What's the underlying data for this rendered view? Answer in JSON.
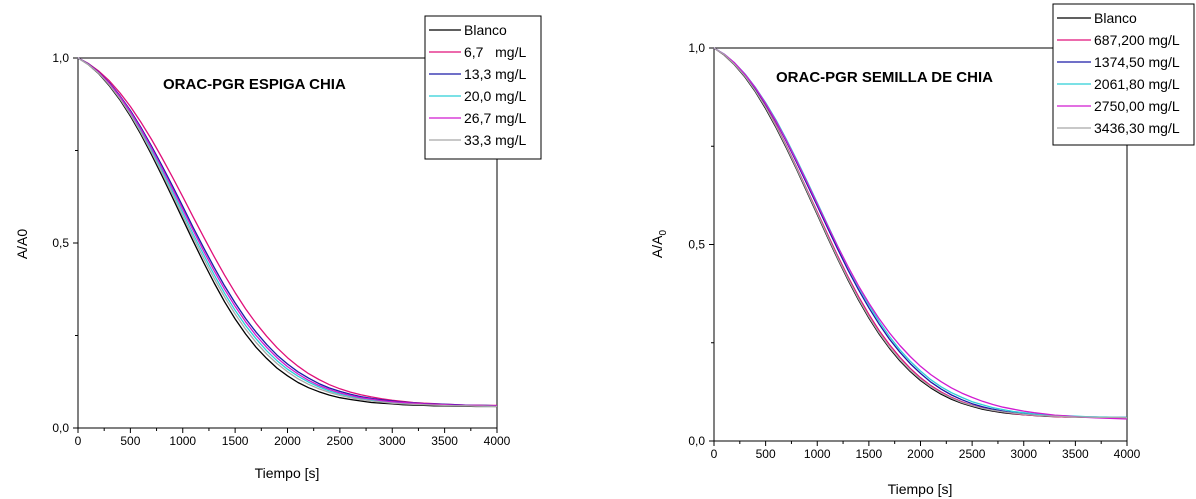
{
  "chart_data": [
    {
      "type": "line",
      "title": "ORAC-PGR ESPIGA CHIA",
      "xlabel": "Tiempo [s]",
      "ylabel": "A/A0",
      "xlim": [
        0,
        4000
      ],
      "ylim": [
        0,
        1
      ],
      "x_ticks": [
        "0",
        "500",
        "1000",
        "1500",
        "2000",
        "2500",
        "3000",
        "3500",
        "4000"
      ],
      "y_ticks": [
        "0,0",
        "0,5",
        "1,0"
      ],
      "grid": false,
      "legend_position": "top-right",
      "x": [
        0,
        100,
        200,
        300,
        400,
        500,
        600,
        700,
        800,
        900,
        1000,
        1100,
        1200,
        1300,
        1400,
        1500,
        1600,
        1700,
        1800,
        1900,
        2000,
        2100,
        2200,
        2300,
        2400,
        2500,
        2600,
        2700,
        2800,
        2900,
        3000,
        3100,
        3200,
        3300,
        3400,
        3500,
        3600,
        3700,
        3800,
        3900,
        4000
      ],
      "series": [
        {
          "name": "Blanco",
          "color": "#000000",
          "values": [
            1.0,
            0.982,
            0.957,
            0.925,
            0.887,
            0.843,
            0.794,
            0.74,
            0.683,
            0.624,
            0.564,
            0.505,
            0.447,
            0.392,
            0.341,
            0.295,
            0.254,
            0.218,
            0.188,
            0.162,
            0.141,
            0.123,
            0.109,
            0.098,
            0.089,
            0.082,
            0.077,
            0.073,
            0.069,
            0.067,
            0.065,
            0.063,
            0.062,
            0.061,
            0.06,
            0.06,
            0.059,
            0.059,
            0.058,
            0.058,
            0.058
          ]
        },
        {
          "name": "6,7   mg/L",
          "color": "#e0107a",
          "values": [
            1.0,
            0.985,
            0.964,
            0.938,
            0.906,
            0.869,
            0.827,
            0.781,
            0.731,
            0.679,
            0.625,
            0.57,
            0.516,
            0.463,
            0.413,
            0.366,
            0.322,
            0.283,
            0.248,
            0.217,
            0.19,
            0.167,
            0.147,
            0.131,
            0.117,
            0.106,
            0.097,
            0.09,
            0.084,
            0.079,
            0.075,
            0.072,
            0.069,
            0.067,
            0.066,
            0.064,
            0.063,
            0.062,
            0.062,
            0.061,
            0.061
          ]
        },
        {
          "name": "13,3 mg/L",
          "color": "#1a1aa6",
          "values": [
            1.0,
            0.984,
            0.961,
            0.933,
            0.898,
            0.858,
            0.813,
            0.763,
            0.71,
            0.655,
            0.599,
            0.542,
            0.487,
            0.434,
            0.384,
            0.338,
            0.296,
            0.259,
            0.226,
            0.197,
            0.173,
            0.152,
            0.135,
            0.12,
            0.108,
            0.099,
            0.091,
            0.085,
            0.08,
            0.076,
            0.073,
            0.07,
            0.068,
            0.066,
            0.065,
            0.064,
            0.063,
            0.062,
            0.061,
            0.061,
            0.06
          ]
        },
        {
          "name": "20,0 mg/L",
          "color": "#2ccfd8",
          "values": [
            1.0,
            0.983,
            0.959,
            0.929,
            0.893,
            0.851,
            0.804,
            0.752,
            0.697,
            0.64,
            0.582,
            0.524,
            0.468,
            0.414,
            0.364,
            0.318,
            0.277,
            0.241,
            0.209,
            0.182,
            0.159,
            0.14,
            0.124,
            0.111,
            0.1,
            0.092,
            0.085,
            0.08,
            0.076,
            0.072,
            0.07,
            0.068,
            0.066,
            0.064,
            0.063,
            0.062,
            0.061,
            0.06,
            0.06,
            0.059,
            0.059
          ]
        },
        {
          "name": "26,7 mg/L",
          "color": "#d11ad1",
          "values": [
            1.0,
            0.983,
            0.96,
            0.931,
            0.896,
            0.855,
            0.809,
            0.758,
            0.704,
            0.648,
            0.591,
            0.534,
            0.478,
            0.425,
            0.375,
            0.329,
            0.287,
            0.25,
            0.218,
            0.19,
            0.166,
            0.146,
            0.129,
            0.115,
            0.104,
            0.095,
            0.088,
            0.082,
            0.078,
            0.074,
            0.071,
            0.069,
            0.067,
            0.065,
            0.064,
            0.063,
            0.062,
            0.061,
            0.061,
            0.06,
            0.06
          ]
        },
        {
          "name": "33,3 mg/L",
          "color": "#a8a8a8",
          "values": [
            1.0,
            0.982,
            0.958,
            0.927,
            0.89,
            0.847,
            0.799,
            0.746,
            0.69,
            0.632,
            0.573,
            0.515,
            0.458,
            0.404,
            0.354,
            0.308,
            0.267,
            0.231,
            0.2,
            0.174,
            0.152,
            0.133,
            0.118,
            0.106,
            0.096,
            0.088,
            0.082,
            0.077,
            0.073,
            0.07,
            0.067,
            0.065,
            0.064,
            0.063,
            0.062,
            0.061,
            0.06,
            0.06,
            0.059,
            0.059,
            0.058
          ]
        }
      ]
    },
    {
      "type": "line",
      "title": "ORAC-PGR SEMILLA DE CHIA",
      "xlabel": "Tiempo [s]",
      "ylabel": "A/A",
      "ylabel_subscript": "0",
      "xlim": [
        0,
        4000
      ],
      "ylim": [
        0,
        1
      ],
      "x_ticks": [
        "0",
        "500",
        "1000",
        "1500",
        "2000",
        "2500",
        "3000",
        "3500",
        "4000"
      ],
      "y_ticks": [
        "0,0",
        "0,5",
        "1,0"
      ],
      "grid": false,
      "legend_position": "top-right",
      "x": [
        0,
        100,
        200,
        300,
        400,
        500,
        600,
        700,
        800,
        900,
        1000,
        1100,
        1200,
        1300,
        1400,
        1500,
        1600,
        1700,
        1800,
        1900,
        2000,
        2100,
        2200,
        2300,
        2400,
        2500,
        2600,
        2700,
        2800,
        2900,
        3000,
        3100,
        3200,
        3300,
        3400,
        3500,
        3600,
        3700,
        3800,
        3900,
        4000
      ],
      "series": [
        {
          "name": "Blanco",
          "color": "#000000",
          "values": [
            1.0,
            0.982,
            0.957,
            0.926,
            0.889,
            0.846,
            0.798,
            0.746,
            0.691,
            0.634,
            0.576,
            0.518,
            0.462,
            0.409,
            0.359,
            0.313,
            0.272,
            0.236,
            0.204,
            0.177,
            0.154,
            0.135,
            0.119,
            0.106,
            0.096,
            0.088,
            0.081,
            0.076,
            0.072,
            0.069,
            0.067,
            0.065,
            0.063,
            0.062,
            0.061,
            0.061,
            0.06,
            0.06,
            0.059,
            0.059,
            0.059
          ]
        },
        {
          "name": "687,200 mg/L",
          "color": "#e0107a",
          "values": [
            1.0,
            0.983,
            0.959,
            0.929,
            0.893,
            0.851,
            0.804,
            0.752,
            0.697,
            0.64,
            0.583,
            0.526,
            0.47,
            0.417,
            0.368,
            0.322,
            0.281,
            0.245,
            0.213,
            0.185,
            0.161,
            0.141,
            0.125,
            0.111,
            0.1,
            0.091,
            0.084,
            0.078,
            0.074,
            0.07,
            0.067,
            0.065,
            0.064,
            0.062,
            0.061,
            0.061,
            0.06,
            0.06,
            0.059,
            0.059,
            0.059
          ]
        },
        {
          "name": "1374,50 mg/L",
          "color": "#1a1aa6",
          "values": [
            1.0,
            0.984,
            0.961,
            0.932,
            0.897,
            0.857,
            0.812,
            0.762,
            0.709,
            0.654,
            0.598,
            0.542,
            0.487,
            0.434,
            0.385,
            0.339,
            0.297,
            0.259,
            0.226,
            0.197,
            0.172,
            0.15,
            0.132,
            0.117,
            0.105,
            0.095,
            0.087,
            0.081,
            0.076,
            0.072,
            0.069,
            0.067,
            0.065,
            0.064,
            0.063,
            0.062,
            0.061,
            0.061,
            0.06,
            0.06,
            0.06
          ]
        },
        {
          "name": "2061,80 mg/L",
          "color": "#2ccfd8",
          "values": [
            1.0,
            0.984,
            0.962,
            0.934,
            0.9,
            0.861,
            0.817,
            0.768,
            0.716,
            0.662,
            0.606,
            0.55,
            0.495,
            0.442,
            0.392,
            0.346,
            0.304,
            0.266,
            0.232,
            0.203,
            0.178,
            0.156,
            0.138,
            0.123,
            0.111,
            0.1,
            0.092,
            0.085,
            0.08,
            0.075,
            0.072,
            0.069,
            0.067,
            0.065,
            0.064,
            0.063,
            0.062,
            0.061,
            0.061,
            0.06,
            0.06
          ]
        },
        {
          "name": "2750,00 mg/L",
          "color": "#d11ad1",
          "values": [
            1.0,
            0.984,
            0.962,
            0.933,
            0.899,
            0.859,
            0.814,
            0.765,
            0.713,
            0.659,
            0.603,
            0.548,
            0.494,
            0.443,
            0.395,
            0.351,
            0.311,
            0.275,
            0.243,
            0.215,
            0.19,
            0.169,
            0.151,
            0.135,
            0.122,
            0.111,
            0.101,
            0.093,
            0.086,
            0.081,
            0.076,
            0.072,
            0.069,
            0.066,
            0.064,
            0.062,
            0.06,
            0.059,
            0.058,
            0.057,
            0.056
          ]
        },
        {
          "name": "3436,30 mg/L",
          "color": "#a8a8a8",
          "values": [
            1.0,
            0.983,
            0.958,
            0.928,
            0.891,
            0.849,
            0.801,
            0.749,
            0.694,
            0.637,
            0.579,
            0.521,
            0.465,
            0.412,
            0.362,
            0.316,
            0.275,
            0.239,
            0.207,
            0.18,
            0.157,
            0.138,
            0.122,
            0.109,
            0.098,
            0.09,
            0.083,
            0.078,
            0.074,
            0.071,
            0.068,
            0.066,
            0.064,
            0.063,
            0.062,
            0.061,
            0.061,
            0.06,
            0.06,
            0.06,
            0.059
          ]
        }
      ]
    }
  ]
}
